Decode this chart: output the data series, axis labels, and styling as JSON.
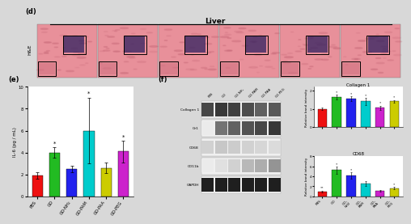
{
  "panel_e": {
    "categories": [
      "PBS",
      "GO",
      "GO-NH₂",
      "GO-PAM",
      "GO-PAA",
      "GO-PEG"
    ],
    "values": [
      1.9,
      4.0,
      2.5,
      6.0,
      2.6,
      4.1
    ],
    "errors": [
      0.3,
      0.5,
      0.3,
      3.0,
      0.5,
      1.0
    ],
    "colors": [
      "#ee1111",
      "#22bb22",
      "#2222ee",
      "#00cccc",
      "#cccc00",
      "#cc22cc"
    ],
    "ylabel": "IL-6 (pg / mL)",
    "ylim": [
      0,
      10
    ],
    "yticks": [
      0,
      2,
      4,
      6,
      8,
      10
    ],
    "stars": [
      null,
      "*",
      null,
      "*",
      null,
      "*"
    ],
    "star_y": [
      null,
      4.6,
      null,
      9.2,
      null,
      5.2
    ]
  },
  "panel_collagen": {
    "title": "Collagen 1",
    "values": [
      1.0,
      1.65,
      1.55,
      1.4,
      1.05,
      1.4
    ],
    "errors": [
      0.08,
      0.12,
      0.12,
      0.18,
      0.12,
      0.08
    ],
    "colors": [
      "#ee1111",
      "#22bb22",
      "#2222ee",
      "#00cccc",
      "#cc22cc",
      "#cccc00"
    ],
    "ylim": [
      0,
      2.2
    ],
    "yticks": [
      0,
      1,
      2
    ],
    "stars": [
      null,
      "*",
      "*",
      "*",
      "*",
      "*"
    ]
  },
  "panel_cd68": {
    "title": "CD68",
    "values": [
      1.0,
      5.2,
      4.1,
      2.6,
      1.05,
      1.6
    ],
    "errors": [
      0.15,
      0.75,
      0.65,
      0.5,
      0.15,
      0.25
    ],
    "colors": [
      "#ee1111",
      "#22bb22",
      "#2222ee",
      "#00cccc",
      "#cc22cc",
      "#cccc00"
    ],
    "ylim": [
      0,
      8
    ],
    "yticks": [
      0,
      2,
      4,
      6,
      8
    ],
    "stars": [
      "**",
      "*",
      "*",
      null,
      null,
      "*"
    ]
  },
  "western": {
    "labels": [
      "Collagen 1",
      "Gr1",
      "CD68",
      "CD11b",
      "GAPDH"
    ],
    "columns": [
      "PBS",
      "GO",
      "GO-NH₂",
      "GO-PAM",
      "GO-PAA",
      "GO-PEG"
    ],
    "band_darkness": [
      [
        0.72,
        0.78,
        0.75,
        0.7,
        0.62,
        0.65
      ],
      [
        0.08,
        0.55,
        0.62,
        0.68,
        0.72,
        0.78
      ],
      [
        0.18,
        0.22,
        0.2,
        0.18,
        0.16,
        0.14
      ],
      [
        0.08,
        0.12,
        0.18,
        0.28,
        0.32,
        0.42
      ],
      [
        0.88,
        0.88,
        0.88,
        0.88,
        0.88,
        0.88
      ]
    ],
    "bg_color": "#e8e8e8",
    "border_color": "#555555"
  },
  "liver_title": "Liver",
  "bg_color": "#d8d8d8",
  "panel_bg": "#e0c8c8",
  "hne_pink": "#e8909a",
  "hne_dark": "#302060"
}
